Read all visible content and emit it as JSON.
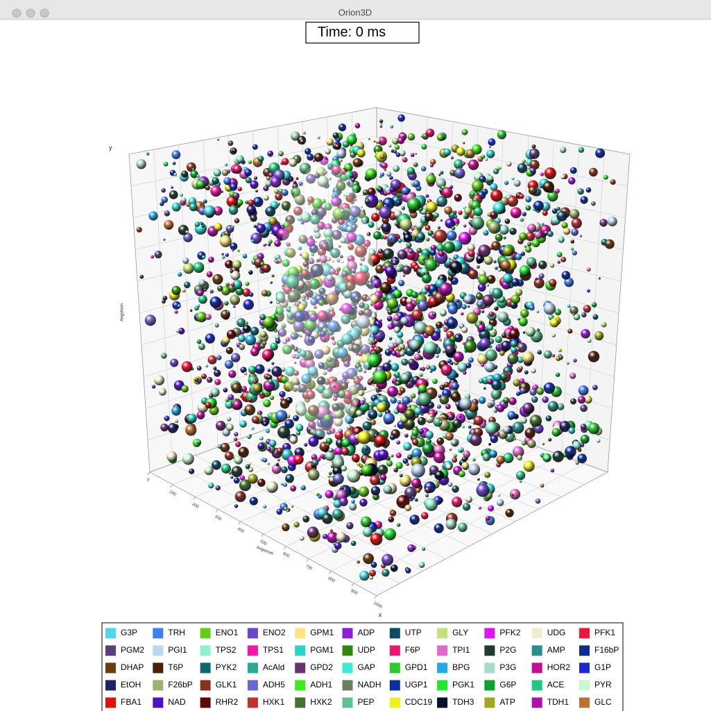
{
  "window": {
    "title": "Orion3D"
  },
  "time_label": "Time: 0 ms",
  "axes": {
    "x_label": "x",
    "x_unit": "Angstrom",
    "y_label": "y",
    "y_unit": "Angstrom",
    "ticks": [
      0,
      100,
      200,
      300,
      400,
      500,
      600,
      700,
      800,
      900,
      1000
    ]
  },
  "legend": [
    {
      "name": "G3P",
      "color": "#4dd9e8"
    },
    {
      "name": "TRH",
      "color": "#3f7fef"
    },
    {
      "name": "ENO1",
      "color": "#66cc1a"
    },
    {
      "name": "ENO2",
      "color": "#6f45c8"
    },
    {
      "name": "GPM1",
      "color": "#ffe680"
    },
    {
      "name": "ADP",
      "color": "#8f1fd6"
    },
    {
      "name": "UTP",
      "color": "#0d4a66"
    },
    {
      "name": "GLY",
      "color": "#c4e07a"
    },
    {
      "name": "PFK2",
      "color": "#dd17f0"
    },
    {
      "name": "UDG",
      "color": "#f0ecd0"
    },
    {
      "name": "PFK1",
      "color": "#f0153a"
    },
    {
      "name": "PGM2",
      "color": "#5a3f80"
    },
    {
      "name": "PGI1",
      "color": "#bcd6ee"
    },
    {
      "name": "TPS2",
      "color": "#8ff0d0"
    },
    {
      "name": "TPS1",
      "color": "#f018a8"
    },
    {
      "name": "PGM1",
      "color": "#2ad4c8"
    },
    {
      "name": "UDP",
      "color": "#2e8a0e"
    },
    {
      "name": "F6P",
      "color": "#e81870"
    },
    {
      "name": "TPI1",
      "color": "#e06ac8"
    },
    {
      "name": "P2G",
      "color": "#1f3a30"
    },
    {
      "name": "AMP",
      "color": "#2e8c8a"
    },
    {
      "name": "F16bP",
      "color": "#0f2a90"
    },
    {
      "name": "DHAP",
      "color": "#6a3a10"
    },
    {
      "name": "T6P",
      "color": "#4a2008"
    },
    {
      "name": "PYK2",
      "color": "#0d6670"
    },
    {
      "name": "AcAld",
      "color": "#2aa890"
    },
    {
      "name": "GPD2",
      "color": "#6a3070"
    },
    {
      "name": "GAP",
      "color": "#40e8d8"
    },
    {
      "name": "GPD1",
      "color": "#30c830"
    },
    {
      "name": "BPG",
      "color": "#28a8e8"
    },
    {
      "name": "P3G",
      "color": "#a8dcc8"
    },
    {
      "name": "HOR2",
      "color": "#c01090"
    },
    {
      "name": "G1P",
      "color": "#1a28d0"
    },
    {
      "name": "EtOH",
      "color": "#22206a"
    },
    {
      "name": "F26bP",
      "color": "#a0b070"
    },
    {
      "name": "GLK1",
      "color": "#8a3020"
    },
    {
      "name": "ADH5",
      "color": "#6a68d0"
    },
    {
      "name": "ADH1",
      "color": "#40e820"
    },
    {
      "name": "NADH",
      "color": "#688060"
    },
    {
      "name": "UGP1",
      "color": "#0a30a0"
    },
    {
      "name": "PGK1",
      "color": "#20e830"
    },
    {
      "name": "G6P",
      "color": "#10a030"
    },
    {
      "name": "ACE",
      "color": "#20c880"
    },
    {
      "name": "PYR",
      "color": "#c8f8d0"
    },
    {
      "name": "FBA1",
      "color": "#e01010"
    },
    {
      "name": "NAD",
      "color": "#5010c8"
    },
    {
      "name": "RHR2",
      "color": "#600808"
    },
    {
      "name": "HXK1",
      "color": "#c03030"
    },
    {
      "name": "HXK2",
      "color": "#487030"
    },
    {
      "name": "PEP",
      "color": "#60c090"
    },
    {
      "name": "CDC19",
      "color": "#f0f020"
    },
    {
      "name": "TDH3",
      "color": "#081030"
    },
    {
      "name": "ATP",
      "color": "#a0a820"
    },
    {
      "name": "TDH1",
      "color": "#b010a8"
    },
    {
      "name": "GLC",
      "color": "#c07030"
    }
  ]
}
